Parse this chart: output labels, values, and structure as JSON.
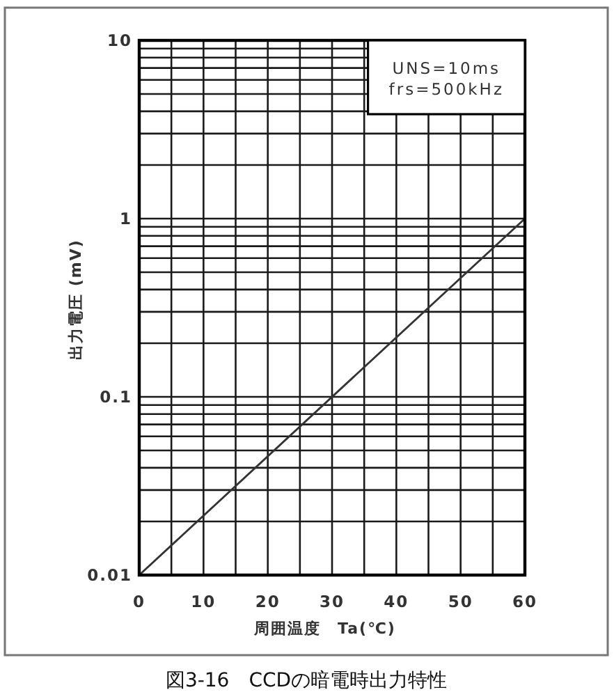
{
  "chart_data": {
    "type": "line",
    "title": "図3-16　CCDの暗電時出力特性",
    "xlabel": "周囲温度　Ta(℃)",
    "ylabel": "出力電圧 (mV)",
    "annotations": [
      "UNS=10ms",
      "frs=500kHz"
    ],
    "series": [
      {
        "color": "#333333",
        "x": [
          0,
          60
        ],
        "values": [
          0.01,
          1
        ]
      }
    ],
    "log": "y",
    "grid": true,
    "xlim": [
      0,
      60
    ],
    "xticks": [
      0,
      {
        "value": 5,
        "label": null
      },
      10,
      {
        "value": 15,
        "label": null
      },
      20,
      {
        "value": 25,
        "label": null
      },
      30,
      {
        "value": 35,
        "label": null
      },
      40,
      {
        "value": 45,
        "label": null
      },
      50,
      {
        "value": 55,
        "label": null
      },
      60
    ],
    "ylim": [
      0.01,
      10
    ],
    "yticks": [
      0.01,
      {
        "value": 0.02,
        "label": null
      },
      {
        "value": 0.03,
        "label": null
      },
      {
        "value": 0.04,
        "label": null
      },
      {
        "value": 0.05,
        "label": null
      },
      {
        "value": 0.06,
        "label": null
      },
      {
        "value": 0.07,
        "label": null
      },
      {
        "value": 0.08,
        "label": null
      },
      {
        "value": 0.09,
        "label": null
      },
      0.1,
      {
        "value": 0.2,
        "label": null
      },
      {
        "value": 0.3,
        "label": null
      },
      {
        "value": 0.4,
        "label": null
      },
      {
        "value": 0.5,
        "label": null
      },
      {
        "value": 0.6,
        "label": null
      },
      {
        "value": 0.7,
        "label": null
      },
      {
        "value": 0.8,
        "label": null
      },
      {
        "value": 0.9,
        "label": null
      },
      1,
      {
        "value": 2,
        "label": null
      },
      {
        "value": 3,
        "label": null
      },
      {
        "value": 4,
        "label": null
      },
      {
        "value": 5,
        "label": null
      },
      {
        "value": 6,
        "label": null
      },
      {
        "value": 7,
        "label": null
      },
      {
        "value": 8,
        "label": null
      },
      {
        "value": 9,
        "label": null
      },
      10
    ]
  }
}
